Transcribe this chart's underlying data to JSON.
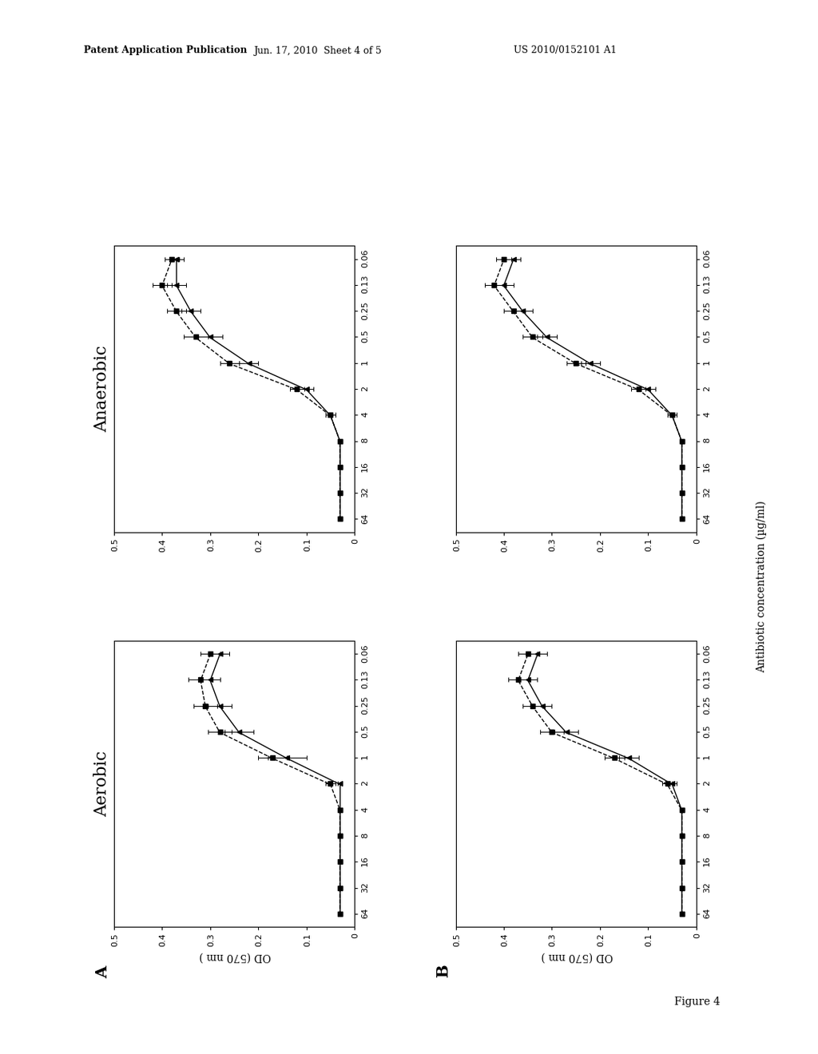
{
  "header_left": "Patent Application Publication",
  "header_center": "Jun. 17, 2010  Sheet 4 of 5",
  "header_right": "US 2010/0152101 A1",
  "figure_label": "Figure 4",
  "x_axis_label": "Antibiotic concentration (µg/ml)",
  "y_axis_label": "OD (570 nm )",
  "conc_ticks": [
    "64",
    "32",
    "16",
    "8",
    "4",
    "2",
    "1",
    "0.5",
    "0.25",
    "0.13",
    "0.06"
  ],
  "od_ticks": [
    "0",
    "0.1",
    "0.2",
    "0.3",
    "0.4",
    "0.5"
  ],
  "od_tick_vals": [
    0,
    0.1,
    0.2,
    0.3,
    0.4,
    0.5
  ],
  "plots": {
    "A_aerobic_solid": [
      0.03,
      0.03,
      0.03,
      0.03,
      0.03,
      0.03,
      0.14,
      0.24,
      0.28,
      0.3,
      0.28
    ],
    "A_aerobic_solid_err": [
      0.005,
      0.005,
      0.005,
      0.005,
      0.005,
      0.005,
      0.04,
      0.03,
      0.025,
      0.02,
      0.02
    ],
    "A_aerobic_dashed": [
      0.03,
      0.03,
      0.03,
      0.03,
      0.03,
      0.05,
      0.17,
      0.28,
      0.31,
      0.32,
      0.3
    ],
    "A_aerobic_dashed_err": [
      0.005,
      0.005,
      0.005,
      0.005,
      0.005,
      0.01,
      0.03,
      0.025,
      0.025,
      0.025,
      0.02
    ],
    "A_anaerobic_solid": [
      0.03,
      0.03,
      0.03,
      0.03,
      0.05,
      0.1,
      0.22,
      0.3,
      0.34,
      0.37,
      0.37
    ],
    "A_anaerobic_solid_err": [
      0.005,
      0.005,
      0.005,
      0.005,
      0.01,
      0.015,
      0.02,
      0.025,
      0.02,
      0.02,
      0.015
    ],
    "A_anaerobic_dashed": [
      0.03,
      0.03,
      0.03,
      0.03,
      0.05,
      0.12,
      0.26,
      0.33,
      0.37,
      0.4,
      0.38
    ],
    "A_anaerobic_dashed_err": [
      0.005,
      0.005,
      0.005,
      0.005,
      0.01,
      0.015,
      0.02,
      0.025,
      0.02,
      0.02,
      0.015
    ],
    "B_aerobic_solid": [
      0.03,
      0.03,
      0.03,
      0.03,
      0.03,
      0.05,
      0.14,
      0.27,
      0.32,
      0.35,
      0.33
    ],
    "B_aerobic_solid_err": [
      0.005,
      0.005,
      0.005,
      0.005,
      0.005,
      0.01,
      0.02,
      0.025,
      0.02,
      0.02,
      0.02
    ],
    "B_aerobic_dashed": [
      0.03,
      0.03,
      0.03,
      0.03,
      0.03,
      0.06,
      0.17,
      0.3,
      0.34,
      0.37,
      0.35
    ],
    "B_aerobic_dashed_err": [
      0.005,
      0.005,
      0.005,
      0.005,
      0.005,
      0.01,
      0.02,
      0.025,
      0.02,
      0.02,
      0.02
    ],
    "B_anaerobic_solid": [
      0.03,
      0.03,
      0.03,
      0.03,
      0.05,
      0.1,
      0.22,
      0.31,
      0.36,
      0.4,
      0.38
    ],
    "B_anaerobic_solid_err": [
      0.005,
      0.005,
      0.005,
      0.005,
      0.01,
      0.015,
      0.02,
      0.02,
      0.02,
      0.02,
      0.015
    ],
    "B_anaerobic_dashed": [
      0.03,
      0.03,
      0.03,
      0.03,
      0.05,
      0.12,
      0.25,
      0.34,
      0.38,
      0.42,
      0.4
    ],
    "B_anaerobic_dashed_err": [
      0.005,
      0.005,
      0.005,
      0.005,
      0.01,
      0.015,
      0.02,
      0.02,
      0.02,
      0.02,
      0.015
    ]
  },
  "background_color": "#ffffff",
  "font_size_header": 9,
  "font_size_title": 16,
  "font_size_label": 10,
  "font_size_tick": 8,
  "font_size_sublabel": 15
}
